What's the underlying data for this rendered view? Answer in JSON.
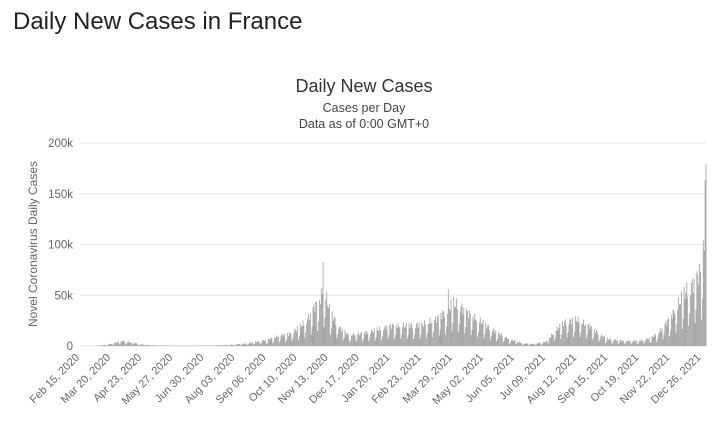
{
  "page": {
    "heading": "Daily New Cases in France"
  },
  "colors": {
    "bar": "#9a9a9a",
    "grid": "#e6e6e6",
    "text": "#333333",
    "axis_text": "#666666"
  },
  "chart_data": {
    "type": "bar",
    "title": "Daily New Cases",
    "subtitle_1": "Cases per Day",
    "subtitle_2": "Data as of 0:00 GMT+0",
    "ylabel": "Novel Coronavirus Daily Cases",
    "xlabel": "",
    "ylim": [
      0,
      200000
    ],
    "yticks": [
      {
        "value": 0,
        "label": "0"
      },
      {
        "value": 50000,
        "label": "50k"
      },
      {
        "value": 100000,
        "label": "100k"
      },
      {
        "value": 150000,
        "label": "150k"
      },
      {
        "value": 200000,
        "label": "200k"
      }
    ],
    "xrange": [
      "2020-02-15",
      "2021-12-31"
    ],
    "xticks": [
      {
        "date": "2020-02-15",
        "label": "Feb 15, 2020"
      },
      {
        "date": "2020-03-20",
        "label": "Mar 20, 2020"
      },
      {
        "date": "2020-04-23",
        "label": "Apr 23, 2020"
      },
      {
        "date": "2020-05-27",
        "label": "May 27, 2020"
      },
      {
        "date": "2020-06-30",
        "label": "Jun 30, 2020"
      },
      {
        "date": "2020-08-03",
        "label": "Aug 03, 2020"
      },
      {
        "date": "2020-09-06",
        "label": "Sep 06, 2020"
      },
      {
        "date": "2020-10-10",
        "label": "Oct 10, 2020"
      },
      {
        "date": "2020-11-13",
        "label": "Nov 13, 2020"
      },
      {
        "date": "2020-12-17",
        "label": "Dec 17, 2020"
      },
      {
        "date": "2021-01-20",
        "label": "Jan 20, 2021"
      },
      {
        "date": "2021-02-23",
        "label": "Feb 23, 2021"
      },
      {
        "date": "2021-03-29",
        "label": "Mar 29, 2021"
      },
      {
        "date": "2021-05-02",
        "label": "May 02, 2021"
      },
      {
        "date": "2021-06-05",
        "label": "Jun 05, 2021"
      },
      {
        "date": "2021-07-09",
        "label": "Jul 09, 2021"
      },
      {
        "date": "2021-08-12",
        "label": "Aug 12, 2021"
      },
      {
        "date": "2021-09-15",
        "label": "Sep 15, 2021"
      },
      {
        "date": "2021-10-19",
        "label": "Oct 19, 2021"
      },
      {
        "date": "2021-11-22",
        "label": "Nov 22, 2021"
      },
      {
        "date": "2021-12-26",
        "label": "Dec 26, 2021"
      }
    ],
    "grid": true,
    "legend": false,
    "series": [
      {
        "points": [
          {
            "x": "2020-02-15",
            "y": 0
          },
          {
            "x": "2020-03-01",
            "y": 100
          },
          {
            "x": "2020-03-10",
            "y": 700
          },
          {
            "x": "2020-03-20",
            "y": 2000
          },
          {
            "x": "2020-03-28",
            "y": 4000
          },
          {
            "x": "2020-04-02",
            "y": 5000
          },
          {
            "x": "2020-04-08",
            "y": 4000
          },
          {
            "x": "2020-04-15",
            "y": 3000
          },
          {
            "x": "2020-04-23",
            "y": 1500
          },
          {
            "x": "2020-05-05",
            "y": 700
          },
          {
            "x": "2020-05-20",
            "y": 400
          },
          {
            "x": "2020-06-10",
            "y": 400
          },
          {
            "x": "2020-07-01",
            "y": 500
          },
          {
            "x": "2020-07-15",
            "y": 700
          },
          {
            "x": "2020-08-03",
            "y": 1500
          },
          {
            "x": "2020-08-20",
            "y": 3000
          },
          {
            "x": "2020-09-06",
            "y": 6000
          },
          {
            "x": "2020-09-20",
            "y": 10000
          },
          {
            "x": "2020-10-01",
            "y": 12000
          },
          {
            "x": "2020-10-10",
            "y": 17000
          },
          {
            "x": "2020-10-20",
            "y": 25000
          },
          {
            "x": "2020-10-28",
            "y": 38000
          },
          {
            "x": "2020-11-03",
            "y": 45000
          },
          {
            "x": "2020-11-07",
            "y": 55000
          },
          {
            "x": "2020-11-10",
            "y": 50000
          },
          {
            "x": "2020-11-15",
            "y": 33000
          },
          {
            "x": "2020-11-25",
            "y": 18000
          },
          {
            "x": "2020-12-05",
            "y": 11000
          },
          {
            "x": "2020-12-17",
            "y": 12000
          },
          {
            "x": "2021-01-01",
            "y": 15000
          },
          {
            "x": "2021-01-20",
            "y": 20000
          },
          {
            "x": "2021-02-05",
            "y": 20000
          },
          {
            "x": "2021-02-23",
            "y": 21000
          },
          {
            "x": "2021-03-10",
            "y": 26000
          },
          {
            "x": "2021-03-22",
            "y": 35000
          },
          {
            "x": "2021-03-29",
            "y": 42000
          },
          {
            "x": "2021-04-05",
            "y": 40000
          },
          {
            "x": "2021-04-15",
            "y": 32000
          },
          {
            "x": "2021-05-02",
            "y": 22000
          },
          {
            "x": "2021-05-15",
            "y": 14000
          },
          {
            "x": "2021-06-01",
            "y": 6000
          },
          {
            "x": "2021-06-15",
            "y": 2500
          },
          {
            "x": "2021-06-25",
            "y": 2000
          },
          {
            "x": "2021-07-09",
            "y": 4000
          },
          {
            "x": "2021-07-20",
            "y": 16000
          },
          {
            "x": "2021-07-30",
            "y": 24000
          },
          {
            "x": "2021-08-12",
            "y": 26000
          },
          {
            "x": "2021-08-25",
            "y": 20000
          },
          {
            "x": "2021-09-05",
            "y": 12000
          },
          {
            "x": "2021-09-15",
            "y": 7000
          },
          {
            "x": "2021-10-01",
            "y": 5000
          },
          {
            "x": "2021-10-19",
            "y": 5000
          },
          {
            "x": "2021-11-01",
            "y": 8000
          },
          {
            "x": "2021-11-10",
            "y": 14000
          },
          {
            "x": "2021-11-22",
            "y": 28000
          },
          {
            "x": "2021-12-01",
            "y": 42000
          },
          {
            "x": "2021-12-10",
            "y": 55000
          },
          {
            "x": "2021-12-18",
            "y": 62000
          },
          {
            "x": "2021-12-26",
            "y": 75000
          },
          {
            "x": "2021-12-29",
            "y": 105000
          },
          {
            "x": "2021-12-31",
            "y": 179000
          }
        ],
        "spikes": [
          {
            "x": "2020-11-07",
            "y": 83000
          },
          {
            "x": "2021-03-24",
            "y": 56000
          },
          {
            "x": "2021-12-28",
            "y": 104000
          },
          {
            "x": "2021-12-31",
            "y": 179000
          }
        ]
      }
    ]
  }
}
